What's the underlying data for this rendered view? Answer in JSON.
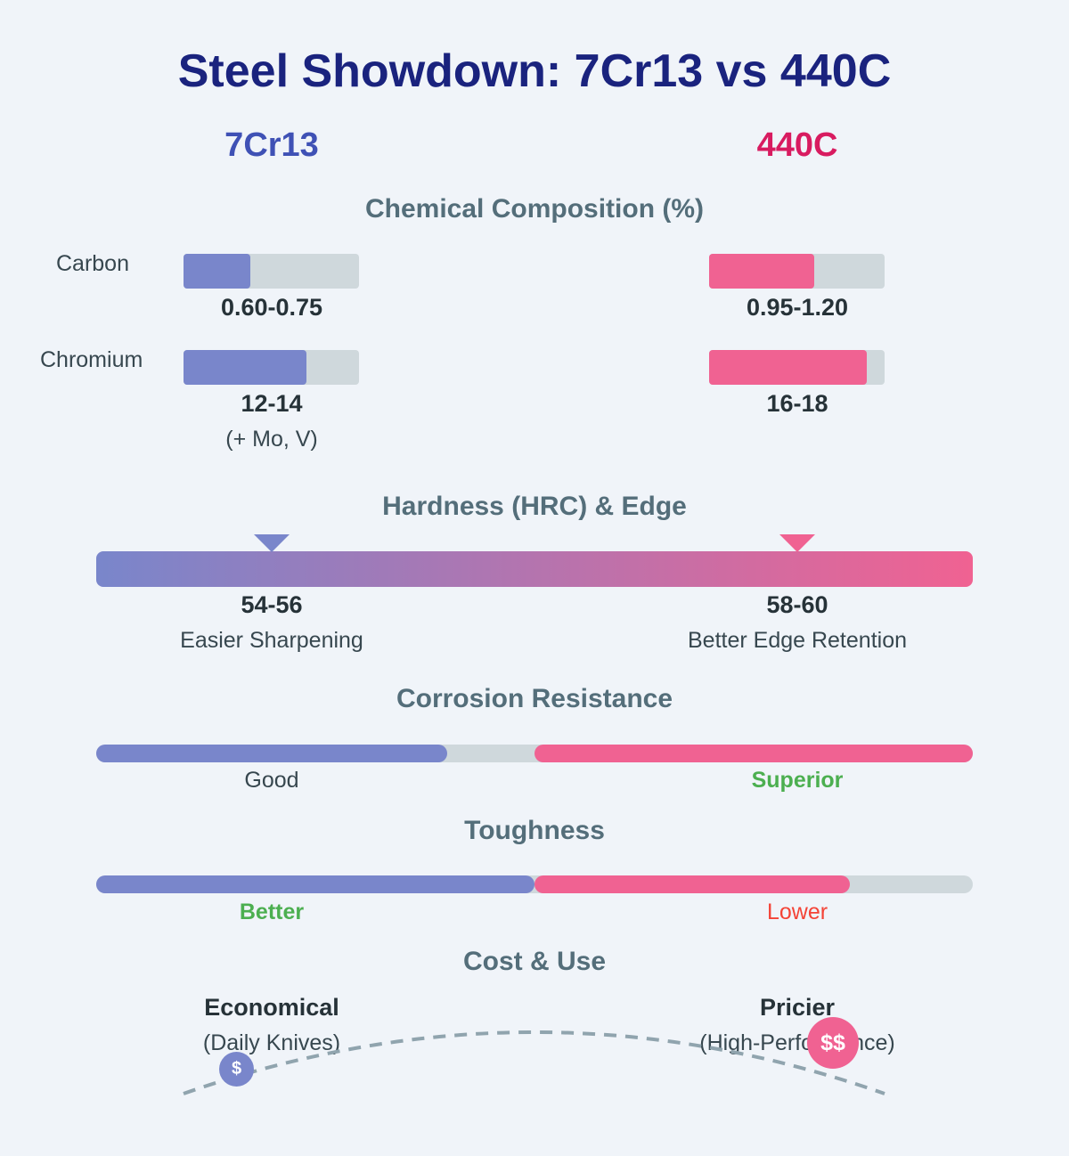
{
  "title": "Steel Showdown: 7Cr13 vs 440C",
  "steels": {
    "a": {
      "name": "7Cr13",
      "color": "#3f51b5"
    },
    "b": {
      "name": "440C",
      "color": "#d81b60"
    }
  },
  "colors": {
    "a_bar": "#7986cb",
    "b_bar": "#f06292",
    "track": "#cfd8dc",
    "positive": "#4caf50",
    "negative": "#f44336"
  },
  "composition": {
    "heading": "Chemical Composition (%)",
    "rows": [
      {
        "label": "Carbon",
        "a_value": "0.60-0.75",
        "b_value": "0.95-1.20",
        "a_fill": 0.38,
        "b_fill": 0.6,
        "a_note": ""
      },
      {
        "label": "Chromium",
        "a_value": "12-14",
        "b_value": "16-18",
        "a_fill": 0.7,
        "b_fill": 0.9,
        "a_note": "(+ Mo, V)"
      }
    ]
  },
  "hardness": {
    "heading": "Hardness (HRC) & Edge",
    "a_value": "54-56",
    "a_note": "Easier Sharpening",
    "a_position": 0.2,
    "b_value": "58-60",
    "b_note": "Better Edge Retention",
    "b_position": 0.8
  },
  "corrosion": {
    "heading": "Corrosion Resistance",
    "a_label": "Good",
    "a_level": 0.8,
    "b_label": "Superior",
    "b_level": 1.0
  },
  "toughness": {
    "heading": "Toughness",
    "a_label": "Better",
    "a_level": 1.0,
    "b_label": "Lower",
    "b_level": 0.72
  },
  "cost": {
    "heading": "Cost & Use",
    "a_title": "Economical",
    "a_note": "(Daily Knives)",
    "a_icon": "$",
    "b_title": "Pricier",
    "b_note": "(High-Performance)",
    "b_icon": "$$"
  }
}
